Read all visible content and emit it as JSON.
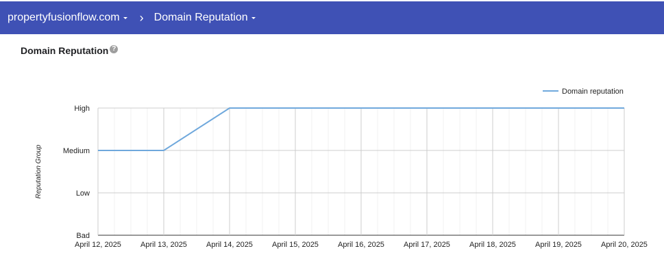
{
  "header": {
    "domain": "propertyfusionflow.com",
    "separator": "›",
    "page": "Domain Reputation",
    "background_color": "#3f51b5"
  },
  "card": {
    "title": "Domain Reputation",
    "help_icon": "help-circle-icon",
    "help_glyph": "?"
  },
  "chart_data": {
    "type": "line",
    "title": "",
    "xlabel": "",
    "ylabel": "Reputation Group",
    "categories": [
      "April 12, 2025",
      "April 13, 2025",
      "April 14, 2025",
      "April 15, 2025",
      "April 16, 2025",
      "April 17, 2025",
      "April 18, 2025",
      "April 19, 2025",
      "April 20, 2025"
    ],
    "y_levels": [
      "Bad",
      "Low",
      "Medium",
      "High"
    ],
    "series": [
      {
        "name": "Domain reputation",
        "color": "#6fa8dc",
        "values": [
          "Medium",
          "Medium",
          "High",
          "High",
          "High",
          "High",
          "High",
          "High",
          "High"
        ]
      }
    ],
    "legend_position": "top-right",
    "grid": true
  }
}
